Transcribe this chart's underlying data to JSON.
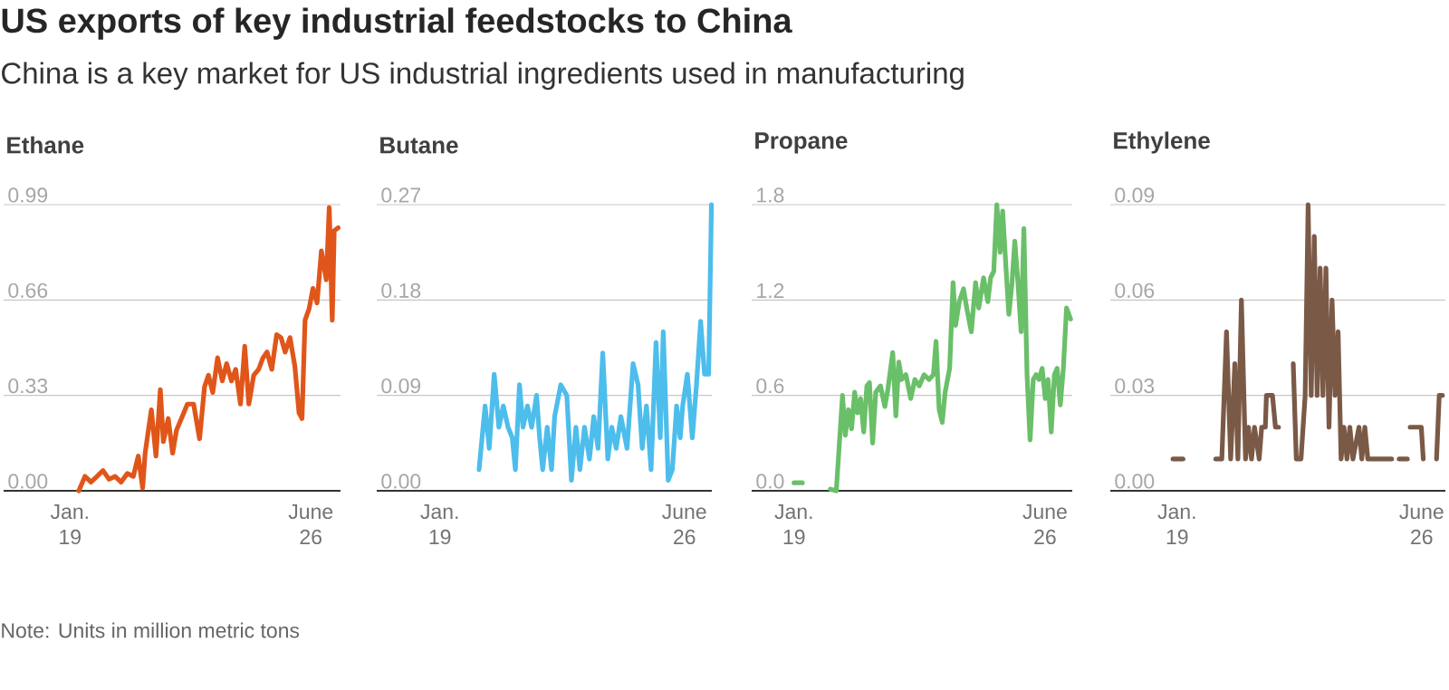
{
  "chart_data": [
    {
      "type": "other",
      "title": "US exports of key industrial feedstocks to China",
      "subtitle": "China is a key market for US industrial ingredients used in manufacturing",
      "annotations": [
        "Note: Units in million metric tons"
      ]
    },
    {
      "type": "line",
      "title": "Ethane",
      "color": "#e0561a",
      "grid": "y",
      "xlim": [
        "2016-12-16",
        "2027-05-01"
      ],
      "xticks": [
        {
          "value": "2019-01",
          "label": "Jan. 19"
        },
        {
          "value": "2026-06",
          "label": "June 26"
        }
      ],
      "ylim": [
        0,
        0.99
      ],
      "yticks": [
        {
          "value": 0,
          "label": "0.00"
        },
        {
          "value": 0.33,
          "label": "0.33"
        },
        {
          "value": 0.66,
          "label": "0.66"
        },
        {
          "value": 0.99,
          "label": "0.99"
        }
      ],
      "x": [
        "2019-04-10",
        "2019-06-19",
        "2019-08-25",
        "2019-11-01",
        "2020-01-07",
        "2020-03-16",
        "2020-05-22",
        "2020-07-28",
        "2020-10-07",
        "2020-12-13",
        "2021-02-07",
        "2021-03-28",
        "2021-04-25",
        "2021-06-01",
        "2021-07-04",
        "2021-08-25",
        "2021-10-13",
        "2021-11-16",
        "2022-01-10",
        "2022-02-28",
        "2022-04-13",
        "2022-06-07",
        "2022-08-13",
        "2022-10-22",
        "2022-12-28",
        "2023-02-22",
        "2023-04-07",
        "2023-05-25",
        "2023-07-19",
        "2023-09-10",
        "2023-10-28",
        "2023-12-22",
        "2024-02-07",
        "2024-04-01",
        "2024-05-19",
        "2024-07-04",
        "2024-08-28",
        "2024-10-22",
        "2024-12-10",
        "2025-01-25",
        "2025-03-19",
        "2025-05-13",
        "2025-07-01",
        "2025-08-16",
        "2025-10-10",
        "2025-12-04",
        "2026-01-19",
        "2026-02-22",
        "2026-03-28",
        "2026-05-13",
        "2026-06-25",
        "2026-08-10",
        "2026-09-28",
        "2026-11-22",
        "2026-12-25",
        "2027-01-28",
        "2027-02-19",
        "2027-04-04"
      ],
      "values": [
        0.0,
        0.05,
        0.03,
        0.05,
        0.07,
        0.04,
        0.05,
        0.03,
        0.06,
        0.05,
        0.12,
        0.01,
        0.13,
        0.21,
        0.28,
        0.12,
        0.35,
        0.17,
        0.25,
        0.13,
        0.21,
        0.25,
        0.3,
        0.3,
        0.18,
        0.36,
        0.4,
        0.34,
        0.46,
        0.38,
        0.44,
        0.38,
        0.42,
        0.3,
        0.5,
        0.3,
        0.4,
        0.42,
        0.46,
        0.48,
        0.42,
        0.54,
        0.53,
        0.48,
        0.53,
        0.43,
        0.27,
        0.25,
        0.59,
        0.63,
        0.7,
        0.65,
        0.83,
        0.73,
        0.98,
        0.59,
        0.9,
        0.91
      ]
    },
    {
      "type": "line",
      "title": "Butane",
      "color": "#4dbdec",
      "grid": "y",
      "xlim": [
        "2017-02-01",
        "2027-04-01"
      ],
      "xticks": [
        {
          "value": "2019-01",
          "label": "Jan. 19"
        },
        {
          "value": "2026-06",
          "label": "June 26"
        }
      ],
      "ylim": [
        0,
        0.27
      ],
      "yticks": [
        {
          "value": 0,
          "label": "0.00"
        },
        {
          "value": 0.09,
          "label": "0.09"
        },
        {
          "value": 0.18,
          "label": "0.18"
        },
        {
          "value": 0.27,
          "label": "0.27"
        }
      ],
      "x": [
        "2020-03-10",
        "2020-05-16",
        "2020-07-01",
        "2020-08-25",
        "2020-10-16",
        "2020-12-04",
        "2021-01-25",
        "2021-03-13",
        "2021-04-16",
        "2021-06-01",
        "2021-07-10",
        "2021-08-28",
        "2021-10-13",
        "2021-12-07",
        "2022-01-10",
        "2022-02-13",
        "2022-04-04",
        "2022-05-22",
        "2022-06-25",
        "2022-09-01",
        "2022-11-07",
        "2022-12-28",
        "2023-02-16",
        "2023-04-01",
        "2023-05-22",
        "2023-07-16",
        "2023-09-01",
        "2023-10-19",
        "2023-12-10",
        "2024-02-04",
        "2024-03-19",
        "2024-05-07",
        "2024-06-28",
        "2024-09-04",
        "2024-11-10",
        "2025-01-04",
        "2025-02-19",
        "2025-04-07",
        "2025-05-28",
        "2025-07-22",
        "2025-09-07",
        "2025-10-10",
        "2025-12-04",
        "2026-01-19",
        "2026-03-07",
        "2026-04-16",
        "2026-05-13",
        "2026-07-04",
        "2026-08-28",
        "2026-10-13",
        "2026-11-28",
        "2027-01-10",
        "2027-02-25",
        "2027-03-28"
      ],
      "values": [
        0.02,
        0.08,
        0.04,
        0.11,
        0.06,
        0.08,
        0.06,
        0.05,
        0.02,
        0.1,
        0.06,
        0.08,
        0.06,
        0.09,
        0.05,
        0.02,
        0.06,
        0.02,
        0.07,
        0.1,
        0.09,
        0.01,
        0.06,
        0.02,
        0.06,
        0.03,
        0.07,
        0.04,
        0.13,
        0.03,
        0.06,
        0.04,
        0.07,
        0.04,
        0.12,
        0.1,
        0.04,
        0.08,
        0.02,
        0.14,
        0.05,
        0.15,
        0.01,
        0.02,
        0.08,
        0.05,
        0.08,
        0.11,
        0.05,
        0.1,
        0.16,
        0.11,
        0.11,
        0.27
      ]
    },
    {
      "type": "line",
      "title": "Propane",
      "color": "#6abf69",
      "grid": "y",
      "xlim": [
        "2017-10-01",
        "2027-03-22"
      ],
      "xticks": [
        {
          "value": "2019-01",
          "label": "Jan. 19"
        },
        {
          "value": "2026-06",
          "label": "June 26"
        }
      ],
      "ylim": [
        0,
        1.8
      ],
      "yticks": [
        {
          "value": 0,
          "label": "0.0"
        },
        {
          "value": 0.6,
          "label": "0.6"
        },
        {
          "value": 1.2,
          "label": "1.2"
        },
        {
          "value": 1.8,
          "label": "1.8"
        }
      ],
      "x": [
        "2019-01-01",
        "2019-04-01",
        "2019-08-01",
        "2020-01-28",
        "2020-04-01",
        "2020-06-07",
        "2020-07-07",
        "2020-08-10",
        "2020-09-13",
        "2020-10-16",
        "2020-11-16",
        "2020-12-19",
        "2021-01-22",
        "2021-02-25",
        "2021-03-25",
        "2021-04-28",
        "2021-06-01",
        "2021-07-22",
        "2021-09-07",
        "2021-10-10",
        "2021-12-01",
        "2022-01-04",
        "2022-02-04",
        "2022-03-07",
        "2022-04-22",
        "2022-06-13",
        "2022-07-28",
        "2022-09-13",
        "2022-11-04",
        "2022-12-28",
        "2023-02-13",
        "2023-03-13",
        "2023-04-16",
        "2023-05-19",
        "2023-06-19",
        "2023-08-07",
        "2023-09-13",
        "2023-10-10",
        "2023-11-19",
        "2024-01-04",
        "2024-02-07",
        "2024-03-28",
        "2024-05-13",
        "2024-06-16",
        "2024-08-07",
        "2024-09-22",
        "2024-10-22",
        "2024-11-25",
        "2024-12-28",
        "2025-02-01",
        "2025-03-01",
        "2025-04-04",
        "2025-05-07",
        "2025-06-10",
        "2025-07-10",
        "2025-08-13",
        "2025-09-16",
        "2025-10-16",
        "2025-11-19",
        "2025-12-22",
        "2026-01-25",
        "2026-02-25",
        "2026-03-28",
        "2026-05-01",
        "2026-06-04",
        "2026-07-04",
        "2026-08-07",
        "2026-09-10",
        "2026-10-10",
        "2026-11-13",
        "2026-12-16",
        "2027-01-19",
        "2027-03-04"
      ],
      "values": [
        0.05,
        0.05,
        null,
        0.01,
        0.0,
        0.6,
        0.35,
        0.51,
        0.39,
        0.62,
        0.49,
        0.58,
        0.37,
        0.66,
        0.68,
        0.3,
        0.62,
        0.66,
        0.53,
        0.64,
        0.87,
        0.47,
        0.81,
        0.7,
        0.73,
        0.58,
        0.7,
        0.66,
        0.73,
        0.7,
        0.73,
        0.94,
        0.51,
        0.43,
        0.62,
        0.77,
        1.31,
        1.04,
        1.19,
        1.27,
        1.15,
        1.0,
        1.31,
        1.15,
        1.34,
        1.19,
        1.34,
        1.38,
        1.8,
        1.5,
        1.76,
        1.42,
        1.11,
        1.31,
        1.57,
        1.31,
        1.0,
        1.65,
        0.73,
        0.32,
        0.7,
        0.73,
        0.7,
        0.77,
        0.58,
        0.7,
        0.37,
        0.73,
        0.77,
        0.54,
        0.77,
        1.15,
        1.08
      ]
    },
    {
      "type": "line",
      "title": "Ethylene",
      "color": "#7a5a47",
      "grid": "y",
      "xlim": [
        "2016-12-22",
        "2027-02-19"
      ],
      "xticks": [
        {
          "value": "2019-01",
          "label": "Jan. 19"
        },
        {
          "value": "2026-06",
          "label": "June 26"
        }
      ],
      "ylim": [
        0,
        0.09
      ],
      "yticks": [
        {
          "value": 0,
          "label": "0.00"
        },
        {
          "value": 0.03,
          "label": "0.03"
        },
        {
          "value": 0.06,
          "label": "0.06"
        },
        {
          "value": 0.09,
          "label": "0.09"
        }
      ],
      "x": [
        "2018-11-16",
        "2019-03-07",
        "2019-09-01",
        "2020-03-04",
        "2020-05-10",
        "2020-07-01",
        "2020-08-16",
        "2020-10-01",
        "2020-11-04",
        "2020-12-13",
        "2021-01-28",
        "2021-03-01",
        "2021-04-04",
        "2021-05-07",
        "2021-06-28",
        "2021-07-25",
        "2021-09-04",
        "2021-09-16",
        "2021-11-22",
        "2021-12-25",
        "2022-01-28",
        "2022-04-16",
        "2022-07-10",
        "2022-08-13",
        "2022-10-04",
        "2022-11-19",
        "2022-12-22",
        "2023-01-25",
        "2023-02-28",
        "2023-04-01",
        "2023-05-04",
        "2023-06-04",
        "2023-07-07",
        "2023-08-10",
        "2023-09-13",
        "2023-10-16",
        "2023-11-19",
        "2023-12-22",
        "2024-01-22",
        "2024-02-25",
        "2024-03-28",
        "2024-05-01",
        "2024-07-07",
        "2024-08-07",
        "2024-09-10",
        "2024-10-13",
        "2024-12-19",
        "2025-04-28",
        "2025-07-04",
        "2025-09-01",
        "2025-09-25",
        "2025-12-25",
        "2026-01-01",
        "2026-01-25",
        "2026-04-10",
        "2026-05-28",
        "2026-06-19",
        "2026-09-01",
        "2026-11-13",
        "2026-12-13",
        "2027-01-16"
      ],
      "values": [
        0.01,
        0.01,
        null,
        0.01,
        0.01,
        0.05,
        0.01,
        0.04,
        0.01,
        0.06,
        0.01,
        0.02,
        0.01,
        0.02,
        0.01,
        0.02,
        0.02,
        0.03,
        0.03,
        0.02,
        0.02,
        null,
        0.04,
        0.01,
        0.01,
        0.03,
        0.09,
        0.03,
        0.08,
        0.03,
        0.07,
        0.03,
        0.07,
        0.02,
        0.06,
        0.03,
        0.05,
        0.01,
        0.02,
        0.01,
        0.02,
        0.01,
        0.02,
        0.01,
        0.02,
        0.01,
        0.01,
        0.01,
        0.01,
        null,
        0.01,
        0.01,
        null,
        0.02,
        0.02,
        0.02,
        0.01,
        null,
        0.01,
        0.03,
        0.03
      ]
    }
  ]
}
